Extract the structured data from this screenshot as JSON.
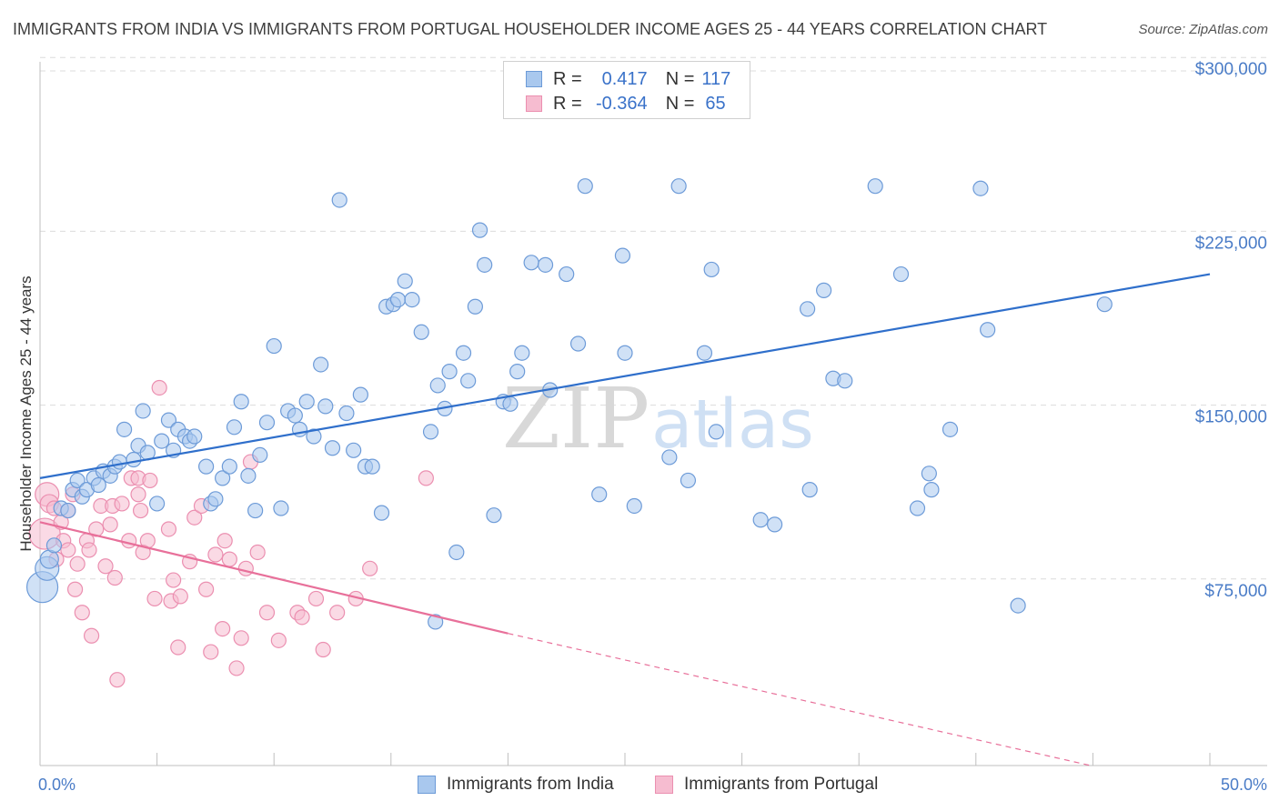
{
  "header": {
    "title": "IMMIGRANTS FROM INDIA VS IMMIGRANTS FROM PORTUGAL HOUSEHOLDER INCOME AGES 25 - 44 YEARS CORRELATION CHART",
    "source": "Source: ZipAtlas.com"
  },
  "legend": {
    "r_label": "R =",
    "n_label": "N =",
    "india": {
      "r": "0.417",
      "n": "117"
    },
    "portugal": {
      "r": "-0.364",
      "n": "65"
    }
  },
  "watermark": {
    "zip": "ZIP",
    "atlas": "atlas"
  },
  "colors": {
    "india_fill": "#a9c8ee",
    "india_stroke": "#6d9bd8",
    "india_line": "#2f6fcb",
    "portugal_fill": "#f6bcd0",
    "portugal_stroke": "#eb8fb0",
    "portugal_line": "#e8709a",
    "grid": "#dcdcdc",
    "tick_text": "#4a7cc7"
  },
  "chart_data": {
    "type": "scatter",
    "title": "IMMIGRANTS FROM INDIA VS IMMIGRANTS FROM PORTUGAL HOUSEHOLDER INCOME AGES 25 - 44 YEARS CORRELATION CHART",
    "xlabel": "",
    "ylabel": "Householder Income Ages 25 - 44 years",
    "xlim": [
      0,
      50
    ],
    "ylim": [
      0,
      310000
    ],
    "x_tick_labels": [
      "0.0%",
      "50.0%"
    ],
    "y_ticks": [
      75000,
      150000,
      225000,
      300000
    ],
    "y_tick_labels": [
      "$75,000",
      "$150,000",
      "$225,000",
      "$300,000"
    ],
    "grid": true,
    "legend_position": "top-center",
    "series": [
      {
        "name": "Immigrants from India",
        "trend": {
          "x": [
            0,
            50
          ],
          "y": [
            124000,
            212000
          ]
        },
        "points": [
          [
            0.1,
            77000
          ],
          [
            0.3,
            85000
          ],
          [
            0.4,
            89000
          ],
          [
            0.6,
            95000
          ],
          [
            0.9,
            111000
          ],
          [
            1.2,
            110000
          ],
          [
            1.4,
            119000
          ],
          [
            1.6,
            123000
          ],
          [
            1.8,
            116000
          ],
          [
            2.0,
            119000
          ],
          [
            2.3,
            124000
          ],
          [
            2.5,
            121000
          ],
          [
            2.7,
            127000
          ],
          [
            3.0,
            125000
          ],
          [
            3.2,
            129000
          ],
          [
            3.4,
            131000
          ],
          [
            3.6,
            145000
          ],
          [
            4.0,
            132000
          ],
          [
            4.2,
            138000
          ],
          [
            4.4,
            153000
          ],
          [
            4.6,
            135000
          ],
          [
            5.0,
            113000
          ],
          [
            5.2,
            140000
          ],
          [
            5.5,
            149000
          ],
          [
            5.7,
            136000
          ],
          [
            5.9,
            145000
          ],
          [
            6.2,
            142000
          ],
          [
            6.4,
            140000
          ],
          [
            6.6,
            142000
          ],
          [
            7.1,
            129000
          ],
          [
            7.3,
            113000
          ],
          [
            7.5,
            115000
          ],
          [
            7.8,
            124000
          ],
          [
            8.1,
            129000
          ],
          [
            8.3,
            146000
          ],
          [
            8.6,
            157000
          ],
          [
            8.9,
            125000
          ],
          [
            9.2,
            110000
          ],
          [
            9.4,
            134000
          ],
          [
            9.7,
            148000
          ],
          [
            10.0,
            181000
          ],
          [
            10.3,
            111000
          ],
          [
            10.6,
            153000
          ],
          [
            10.9,
            151000
          ],
          [
            11.1,
            145000
          ],
          [
            11.4,
            157000
          ],
          [
            11.7,
            142000
          ],
          [
            12.0,
            173000
          ],
          [
            12.2,
            155000
          ],
          [
            12.5,
            137000
          ],
          [
            12.8,
            244000
          ],
          [
            13.1,
            152000
          ],
          [
            13.4,
            136000
          ],
          [
            13.7,
            160000
          ],
          [
            13.9,
            129000
          ],
          [
            14.2,
            129000
          ],
          [
            14.6,
            109000
          ],
          [
            14.8,
            198000
          ],
          [
            15.1,
            199000
          ],
          [
            15.3,
            201000
          ],
          [
            15.6,
            209000
          ],
          [
            15.9,
            201000
          ],
          [
            16.3,
            187000
          ],
          [
            16.7,
            144000
          ],
          [
            17.0,
            164000
          ],
          [
            17.3,
            154000
          ],
          [
            17.5,
            170000
          ],
          [
            17.8,
            92000
          ],
          [
            18.1,
            178000
          ],
          [
            18.3,
            166000
          ],
          [
            18.6,
            198000
          ],
          [
            18.8,
            231000
          ],
          [
            19.0,
            216000
          ],
          [
            19.4,
            108000
          ],
          [
            19.8,
            157000
          ],
          [
            20.1,
            156000
          ],
          [
            20.4,
            170000
          ],
          [
            20.6,
            178000
          ],
          [
            21.0,
            217000
          ],
          [
            21.6,
            216000
          ],
          [
            21.8,
            162000
          ],
          [
            22.5,
            212000
          ],
          [
            23.0,
            182000
          ],
          [
            23.3,
            250000
          ],
          [
            23.9,
            117000
          ],
          [
            24.9,
            220000
          ],
          [
            25.0,
            178000
          ],
          [
            25.4,
            112000
          ],
          [
            26.9,
            133000
          ],
          [
            27.3,
            250000
          ],
          [
            27.7,
            123000
          ],
          [
            28.4,
            178000
          ],
          [
            28.7,
            214000
          ],
          [
            28.9,
            144000
          ],
          [
            30.8,
            106000
          ],
          [
            31.4,
            104000
          ],
          [
            32.8,
            197000
          ],
          [
            32.9,
            119000
          ],
          [
            33.5,
            205000
          ],
          [
            33.9,
            167000
          ],
          [
            34.4,
            166000
          ],
          [
            35.7,
            250000
          ],
          [
            36.8,
            212000
          ],
          [
            37.5,
            111000
          ],
          [
            38.0,
            126000
          ],
          [
            38.1,
            119000
          ],
          [
            38.9,
            145000
          ],
          [
            40.2,
            249000
          ],
          [
            40.5,
            188000
          ],
          [
            41.8,
            69000
          ],
          [
            45.5,
            199000
          ],
          [
            16.9,
            62000
          ]
        ]
      },
      {
        "name": "Immigrants from Portugal",
        "trend": {
          "x": [
            0,
            20
          ],
          "y": [
            105000,
            57000
          ]
        },
        "trend_dashed": {
          "x": [
            20,
            44.9
          ],
          "y": [
            57000,
            0
          ]
        },
        "points": [
          [
            0.2,
            100000
          ],
          [
            0.3,
            117000
          ],
          [
            0.4,
            113000
          ],
          [
            0.6,
            111000
          ],
          [
            0.7,
            89000
          ],
          [
            0.9,
            105000
          ],
          [
            1.0,
            97000
          ],
          [
            1.2,
            110000
          ],
          [
            1.2,
            93000
          ],
          [
            1.4,
            117000
          ],
          [
            1.5,
            76000
          ],
          [
            1.6,
            87000
          ],
          [
            1.8,
            66000
          ],
          [
            2.0,
            97000
          ],
          [
            2.1,
            93000
          ],
          [
            2.2,
            56000
          ],
          [
            2.4,
            102000
          ],
          [
            2.6,
            112000
          ],
          [
            2.8,
            86000
          ],
          [
            3.0,
            104000
          ],
          [
            3.1,
            112000
          ],
          [
            3.2,
            81000
          ],
          [
            3.3,
            37000
          ],
          [
            3.5,
            113000
          ],
          [
            3.8,
            97000
          ],
          [
            3.9,
            124000
          ],
          [
            4.2,
            117000
          ],
          [
            4.2,
            124000
          ],
          [
            4.3,
            110000
          ],
          [
            4.4,
            92000
          ],
          [
            4.6,
            97000
          ],
          [
            4.7,
            123000
          ],
          [
            4.9,
            72000
          ],
          [
            5.1,
            163000
          ],
          [
            5.5,
            102000
          ],
          [
            5.6,
            71000
          ],
          [
            5.7,
            80000
          ],
          [
            5.9,
            51000
          ],
          [
            6.0,
            73000
          ],
          [
            6.4,
            88000
          ],
          [
            6.6,
            107000
          ],
          [
            6.9,
            112000
          ],
          [
            7.1,
            76000
          ],
          [
            7.3,
            49000
          ],
          [
            7.5,
            91000
          ],
          [
            7.8,
            59000
          ],
          [
            7.9,
            97000
          ],
          [
            8.1,
            89000
          ],
          [
            8.4,
            42000
          ],
          [
            8.6,
            55000
          ],
          [
            8.8,
            85000
          ],
          [
            9.0,
            131000
          ],
          [
            9.3,
            92000
          ],
          [
            9.7,
            66000
          ],
          [
            10.2,
            54000
          ],
          [
            11.0,
            66000
          ],
          [
            11.2,
            64000
          ],
          [
            11.8,
            72000
          ],
          [
            12.1,
            50000
          ],
          [
            12.7,
            66000
          ],
          [
            13.5,
            72000
          ],
          [
            14.1,
            85000
          ],
          [
            16.5,
            124000
          ]
        ]
      }
    ]
  }
}
